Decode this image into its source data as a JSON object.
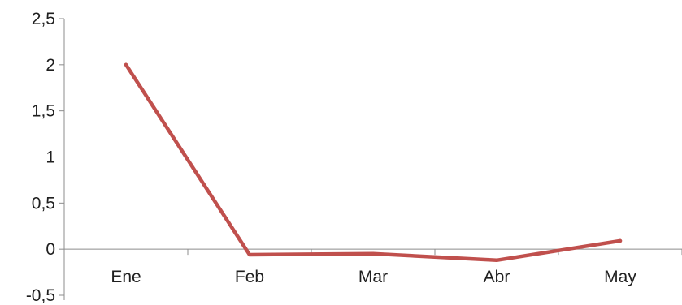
{
  "chart_data": {
    "type": "line",
    "title": "",
    "xlabel": "",
    "ylabel": "",
    "categories": [
      "Ene",
      "Feb",
      "Mar",
      "Abr",
      "May"
    ],
    "series": [
      {
        "values": [
          2.0,
          -0.06,
          -0.05,
          -0.12,
          0.09
        ],
        "color": "#c0504d"
      }
    ],
    "ylim": [
      -0.5,
      2.5
    ],
    "yticks": [
      -0.5,
      0,
      0.5,
      1,
      1.5,
      2,
      2.5
    ],
    "ytick_labels": [
      "-0,5",
      "0",
      "0,5",
      "1",
      "1,5",
      "2",
      "2,5"
    ],
    "grid": false,
    "legend": "none",
    "axis_color": "#8c8c8c"
  }
}
